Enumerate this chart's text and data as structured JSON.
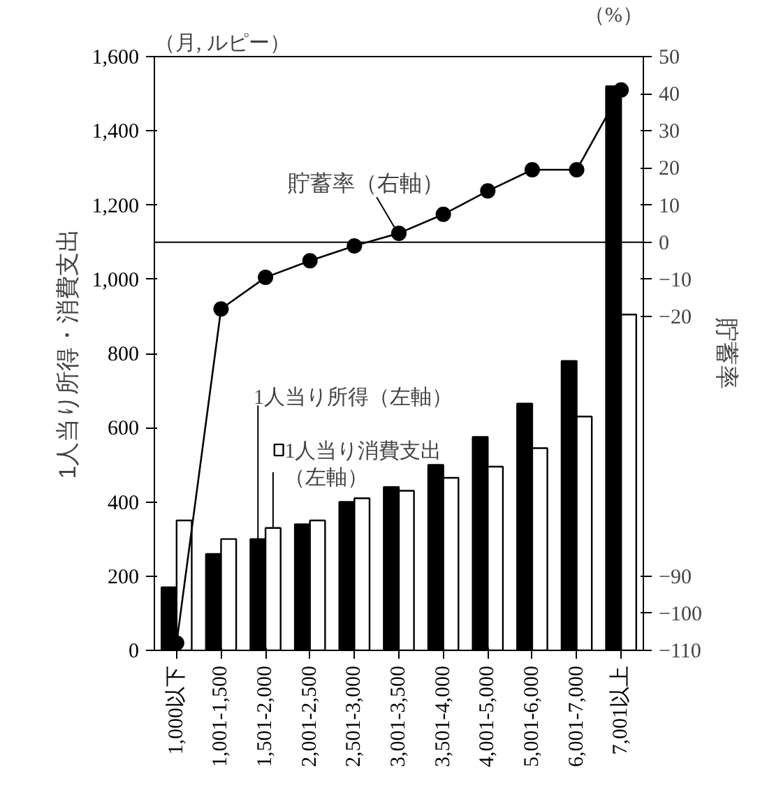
{
  "chart_data": {
    "type": "bar",
    "categories": [
      "1,000以下",
      "1,001-1,500",
      "1,501-2,000",
      "2,001-2,500",
      "2,501-3,000",
      "3,001-3,500",
      "3,501-4,000",
      "4,001-5,000",
      "5,001-6,000",
      "6,001-7,000",
      "7,001以上"
    ],
    "series": [
      {
        "name": "1人当り所得（左軸）",
        "color": "#000000",
        "values": [
          170,
          260,
          300,
          340,
          400,
          440,
          500,
          575,
          665,
          780,
          1520
        ]
      },
      {
        "name": "1人当り消費支出（左軸）",
        "color": "#ffffff",
        "values": [
          350,
          300,
          330,
          350,
          410,
          430,
          465,
          495,
          545,
          630,
          905
        ]
      },
      {
        "name": "貯蓄率（右軸）",
        "type": "line",
        "axis": "y2",
        "color": "#000000",
        "marker": "circle",
        "values": [
          -108,
          -18,
          -9.5,
          -5,
          -1,
          2.4,
          7.5,
          13.8,
          19.5,
          19.5,
          41
        ]
      }
    ],
    "ylabel": "1人当り所得・消費支出",
    "y2label": "貯蓄率",
    "ylim": [
      0,
      1600
    ],
    "yticks": [
      0,
      200,
      400,
      600,
      800,
      {
        "value": 1000,
        "label": "1,000"
      },
      {
        "value": 1200,
        "label": "1,200"
      },
      {
        "value": 1400,
        "label": "1,400"
      },
      {
        "value": 1600,
        "label": "1,600"
      }
    ],
    "y2lim": [
      -110,
      50
    ],
    "y2ticks": [
      50,
      40,
      30,
      20,
      10,
      0,
      -10,
      -20,
      -90,
      -100,
      -110
    ],
    "ref_lines": [
      {
        "axis": "y2",
        "value": 0
      }
    ],
    "annotations": [
      "（月, ルピー）",
      "（%）"
    ],
    "grid": false
  }
}
